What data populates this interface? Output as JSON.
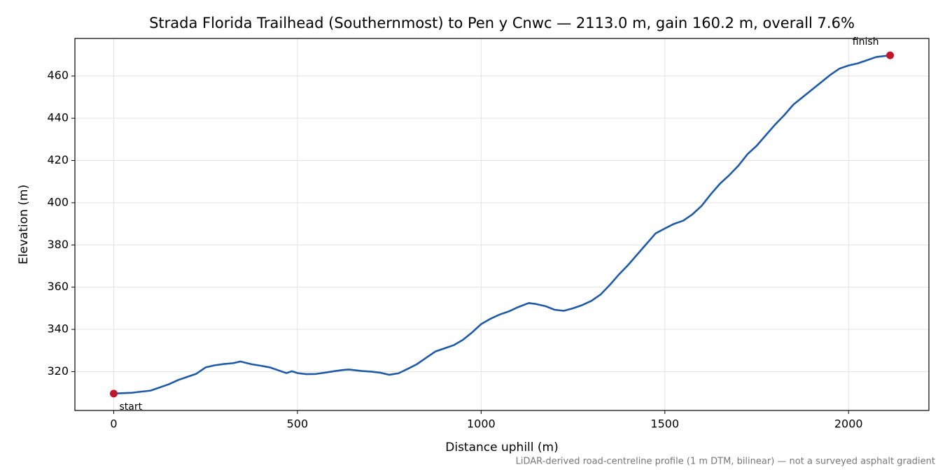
{
  "chart_data": {
    "type": "line",
    "title": "Strada Florida Trailhead (Southernmost) to Pen y Cnwc — 2113.0 m, gain 160.2 m, overall 7.6%",
    "x_label": "Distance uphill (m)",
    "y_label": "Elevation (m)",
    "footnote": "LiDAR-derived road-centreline profile (1 m DTM, bilinear) — not a surveyed asphalt gradient",
    "x": [
      0,
      50,
      100,
      150,
      175,
      200,
      225,
      250,
      275,
      300,
      325,
      345,
      375,
      400,
      425,
      450,
      470,
      485,
      500,
      525,
      550,
      575,
      600,
      625,
      640,
      675,
      700,
      725,
      750,
      775,
      800,
      825,
      850,
      875,
      900,
      925,
      950,
      975,
      1000,
      1025,
      1050,
      1075,
      1100,
      1130,
      1150,
      1175,
      1200,
      1225,
      1250,
      1275,
      1300,
      1325,
      1350,
      1375,
      1400,
      1425,
      1450,
      1475,
      1500,
      1525,
      1550,
      1575,
      1600,
      1625,
      1650,
      1675,
      1700,
      1725,
      1750,
      1775,
      1800,
      1825,
      1850,
      1875,
      1900,
      1925,
      1950,
      1975,
      2000,
      2025,
      2050,
      2075,
      2113
    ],
    "series": [
      {
        "color": "#1f5aa6",
        "values": [
          309.6,
          310,
          311,
          314,
          316,
          317.5,
          319,
          322,
          323,
          323.6,
          324,
          324.8,
          323.5,
          322.8,
          322,
          320.5,
          319.3,
          320.2,
          319.3,
          318.8,
          318.9,
          319.5,
          320.2,
          320.8,
          321,
          320.3,
          320,
          319.5,
          318.5,
          319.2,
          321.3,
          323.5,
          326.5,
          329.5,
          331,
          332.5,
          335,
          338.5,
          342.5,
          345,
          347,
          348.5,
          350.5,
          352.5,
          352,
          351,
          349.3,
          348.8,
          350,
          351.5,
          353.5,
          356.5,
          361,
          366,
          370.5,
          375.5,
          380.5,
          385.5,
          387.8,
          390,
          391.5,
          394.5,
          398.5,
          404,
          409,
          413,
          417.5,
          423,
          427,
          432,
          437,
          441.5,
          446.5,
          450,
          453.5,
          457,
          460.5,
          463.5,
          465,
          466,
          467.5,
          469,
          469.8
        ]
      }
    ],
    "points": [
      {
        "label": "start",
        "x": 0,
        "y": 309.6
      },
      {
        "label": "finish",
        "x": 2113,
        "y": 469.8
      }
    ],
    "point_color": "#c0182a",
    "xlim": [
      -105.65,
      2218.65
    ],
    "ylim": [
      301.6,
      477.8
    ],
    "xticks": [
      0,
      500,
      1000,
      1500,
      2000
    ],
    "yticks": [
      320,
      340,
      360,
      380,
      400,
      420,
      440,
      460
    ],
    "grid": true
  }
}
